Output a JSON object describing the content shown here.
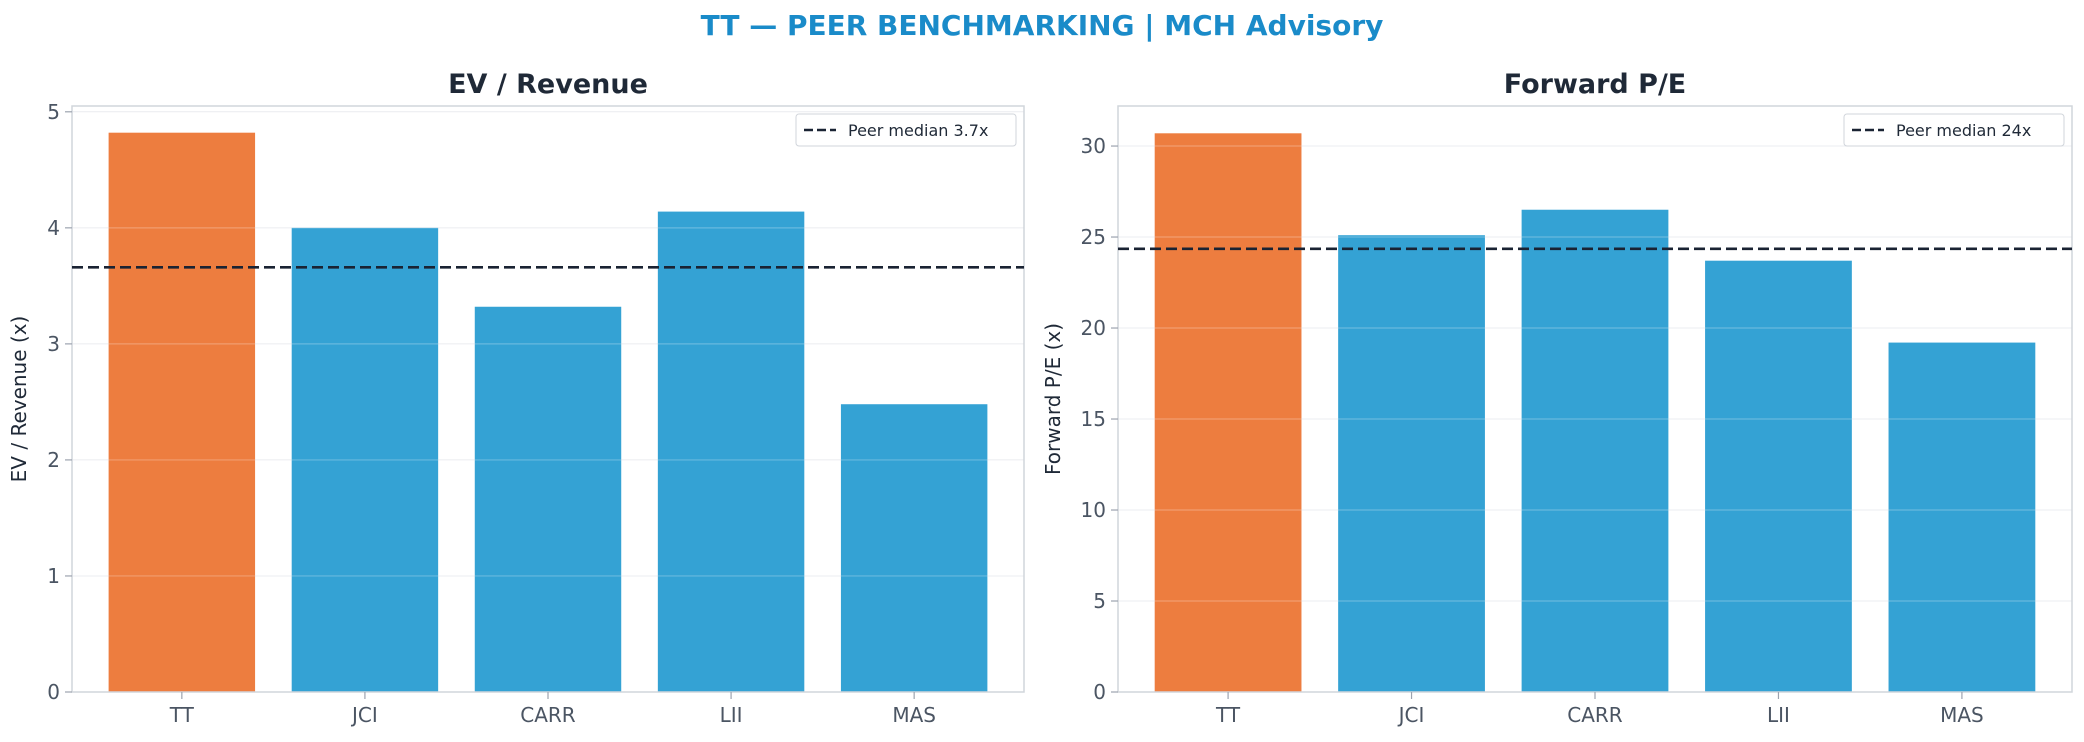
{
  "title": "TT — PEER BENCHMARKING | MCH Advisory",
  "colors": {
    "highlight": "#ed7d3f",
    "peer": "#34a2d4",
    "median_line": "#1a2333",
    "title": "#1a8bc9",
    "axis": "#d1d5db",
    "grid": "#e5e7eb"
  },
  "chart_data": [
    {
      "type": "bar",
      "title": "EV / Revenue",
      "ylabel": "EV / Revenue (x)",
      "categories": [
        "TT",
        "JCI",
        "CARR",
        "LII",
        "MAS"
      ],
      "values": [
        4.82,
        4.0,
        3.32,
        4.14,
        2.48
      ],
      "highlight": "TT",
      "ylim": [
        0,
        5.05
      ],
      "yticks": [
        0,
        1,
        2,
        3,
        4,
        5
      ],
      "reference_line": {
        "value": 3.66,
        "label": "Peer median 3.7x",
        "style": "dashed"
      },
      "legend": "top-right",
      "grid": true
    },
    {
      "type": "bar",
      "title": "Forward P/E",
      "ylabel": "Forward P/E (x)",
      "categories": [
        "TT",
        "JCI",
        "CARR",
        "LII",
        "MAS"
      ],
      "values": [
        30.7,
        25.1,
        26.5,
        23.7,
        19.2
      ],
      "highlight": "TT",
      "ylim": [
        0,
        32.2
      ],
      "yticks": [
        0,
        5,
        10,
        15,
        20,
        25,
        30
      ],
      "reference_line": {
        "value": 24.35,
        "label": "Peer median 24x",
        "style": "dashed"
      },
      "legend": "top-right",
      "grid": true
    }
  ]
}
